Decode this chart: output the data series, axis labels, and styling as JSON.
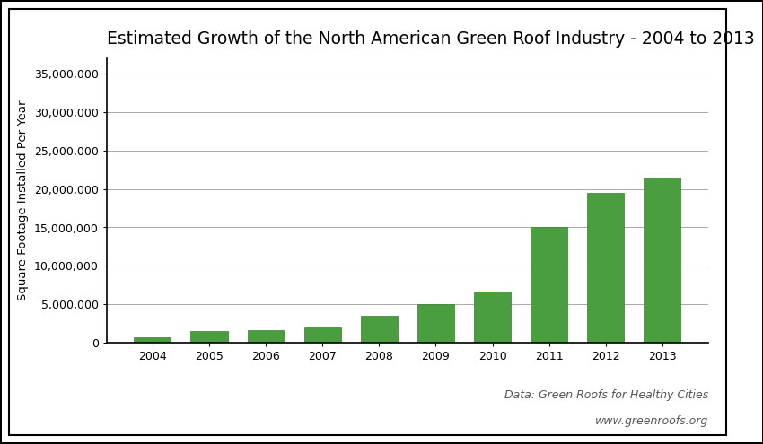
{
  "title": "Estimated Growth of the North American Green Roof Industry - 2004 to 2013",
  "ylabel": "Square Footage Installed Per Year",
  "years": [
    "2004",
    "2005",
    "2006",
    "2007",
    "2008",
    "2009",
    "2010",
    "2011",
    "2012",
    "2013"
  ],
  "values": [
    700000,
    1500000,
    1600000,
    2000000,
    3500000,
    5000000,
    6600000,
    15000000,
    19500000,
    21500000
  ],
  "bar_color": "#4a9e3f",
  "bar_edgecolor": "#3a7e2f",
  "ylim": [
    0,
    37000000
  ],
  "yticks": [
    0,
    5000000,
    10000000,
    15000000,
    20000000,
    25000000,
    30000000,
    35000000
  ],
  "background_color": "#ffffff",
  "annotation1": "Data: Green Roofs for Healthy Cities",
  "annotation2": "www.greenroofs.org",
  "title_fontsize": 13.5,
  "axis_fontsize": 9.5,
  "tick_fontsize": 9,
  "annotation_fontsize": 9
}
